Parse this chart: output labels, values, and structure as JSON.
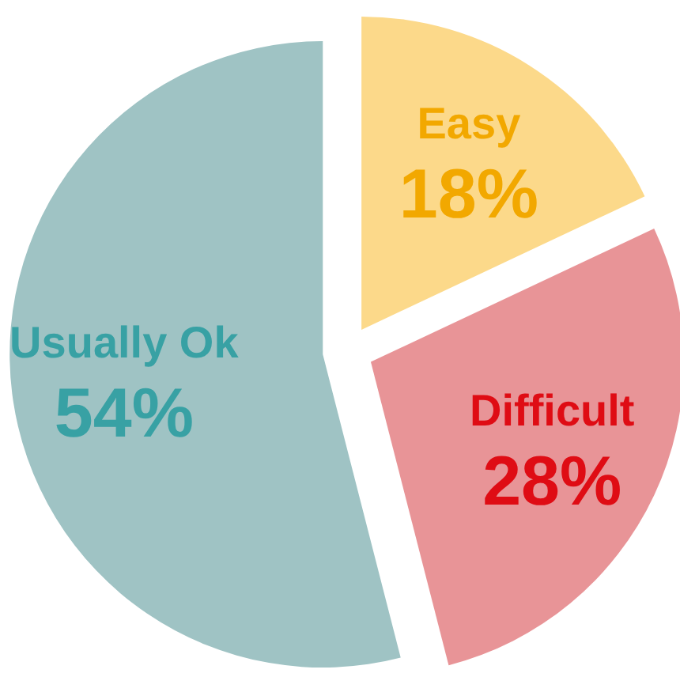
{
  "chart_data": {
    "type": "pie",
    "categories": [
      "Easy",
      "Difficult",
      "Usually Ok"
    ],
    "values": [
      18,
      28,
      54
    ],
    "value_labels": [
      "18%",
      "28%",
      "54%"
    ],
    "colors": [
      "#fcd98a",
      "#e89497",
      "#9fc3c4"
    ],
    "legend": false
  }
}
